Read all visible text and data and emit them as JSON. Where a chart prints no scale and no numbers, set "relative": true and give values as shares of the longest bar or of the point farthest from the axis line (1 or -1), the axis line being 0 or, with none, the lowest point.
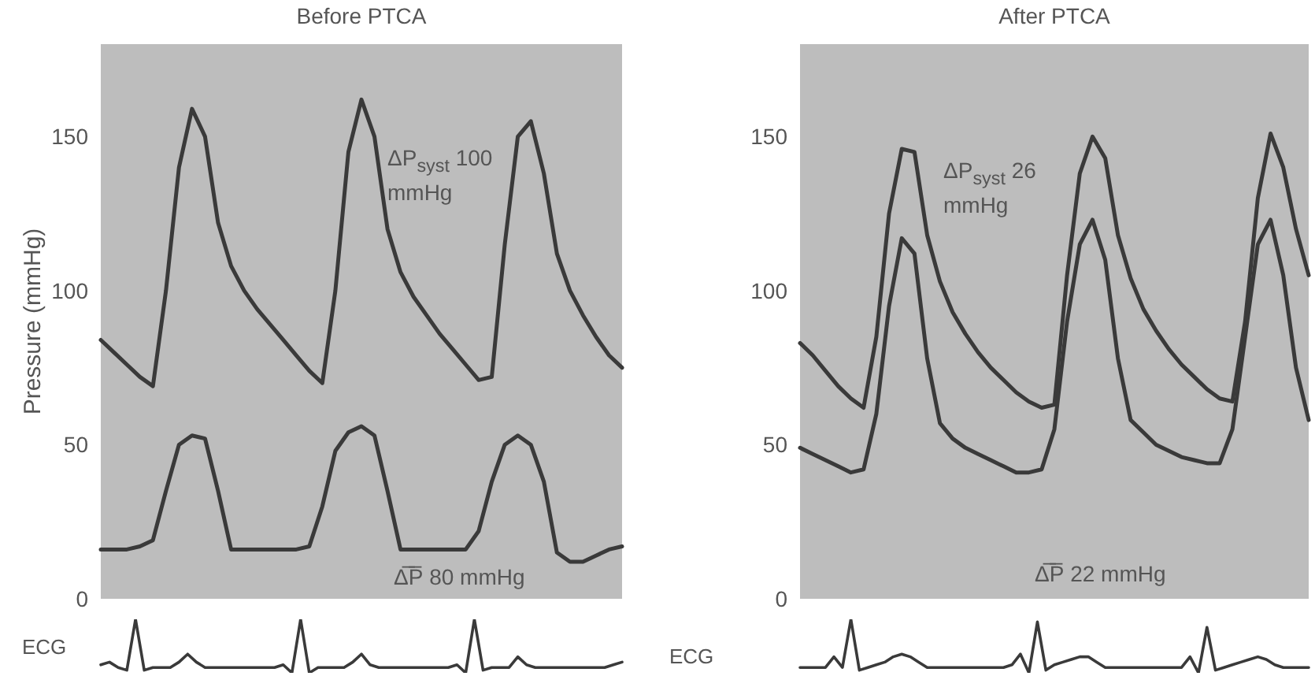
{
  "chart_data": [
    {
      "type": "line",
      "title": "Before PTCA",
      "ylabel": "Pressure (mmHg)",
      "ylim": [
        0,
        180
      ],
      "yticks": [
        0,
        50,
        100,
        150
      ],
      "marker": "none",
      "grid": false,
      "categories": [
        null,
        null,
        null,
        null,
        null,
        null,
        null,
        null,
        null,
        null,
        null,
        null,
        null,
        null,
        null,
        null,
        null,
        null,
        null,
        null,
        null,
        null,
        null,
        null,
        null,
        null,
        null,
        null,
        null,
        null,
        null,
        null,
        null,
        null,
        null,
        null,
        null,
        null,
        null,
        null,
        null
      ],
      "series": [
        {
          "color": "#3a3a3a",
          "values": [
            84,
            80,
            76,
            72,
            69,
            100,
            140,
            159,
            150,
            122,
            108,
            100,
            94,
            89,
            84,
            79,
            74,
            70,
            100,
            145,
            162,
            150,
            120,
            106,
            98,
            92,
            86,
            81,
            76,
            71,
            72,
            115,
            150,
            155,
            138,
            112,
            100,
            92,
            85,
            79,
            75
          ]
        },
        {
          "color": "#3a3a3a",
          "values": [
            16,
            16,
            16,
            17,
            19,
            35,
            50,
            53,
            52,
            35,
            16,
            16,
            16,
            16,
            16,
            16,
            17,
            30,
            48,
            54,
            56,
            53,
            35,
            16,
            16,
            16,
            16,
            16,
            16,
            22,
            38,
            50,
            53,
            50,
            38,
            15,
            12,
            12,
            14,
            16,
            17
          ]
        }
      ],
      "annotations": [
        "ΔP$_{syst}$ 100 mmHg",
        "Δ̅P̅ 80 mmHg"
      ]
    },
    {
      "type": "line",
      "ylabel": "ECG",
      "relative": true,
      "marker": "none",
      "grid": false,
      "categories": [
        null,
        null,
        null,
        null,
        null,
        null,
        null,
        null,
        null,
        null,
        null,
        null,
        null,
        null,
        null,
        null,
        null,
        null,
        null,
        null,
        null,
        null,
        null,
        null,
        null,
        null,
        null,
        null,
        null,
        null,
        null,
        null,
        null,
        null,
        null,
        null,
        null,
        null,
        null,
        null,
        null,
        null,
        null,
        null,
        null,
        null,
        null,
        null,
        null,
        null,
        null,
        null,
        null,
        null,
        null,
        null,
        null,
        null,
        null,
        null,
        null
      ],
      "series": [
        {
          "color": "#3a3a3a",
          "values": [
            0.15,
            0.2,
            0.1,
            0.05,
            1,
            0.05,
            0.1,
            0.1,
            0.1,
            0.2,
            0.35,
            0.2,
            0.1,
            0.1,
            0.1,
            0.1,
            0.1,
            0.1,
            0.1,
            0.1,
            0.1,
            0.15,
            0,
            1,
            0,
            0.1,
            0.1,
            0.1,
            0.1,
            0.2,
            0.35,
            0.15,
            0.1,
            0.1,
            0.1,
            0.1,
            0.1,
            0.1,
            0.1,
            0.1,
            0.1,
            0.15,
            0,
            1,
            0.05,
            0.1,
            0.1,
            0.1,
            0.3,
            0.15,
            0.1,
            0.1,
            0.1,
            0.1,
            0.1,
            0.1,
            0.1,
            0.1,
            0.1,
            0.15,
            0.2
          ]
        }
      ]
    },
    {
      "type": "line",
      "title": "After PTCA",
      "ylim": [
        0,
        180
      ],
      "yticks": [
        0,
        50,
        100,
        150
      ],
      "marker": "none",
      "grid": false,
      "categories": [
        null,
        null,
        null,
        null,
        null,
        null,
        null,
        null,
        null,
        null,
        null,
        null,
        null,
        null,
        null,
        null,
        null,
        null,
        null,
        null,
        null,
        null,
        null,
        null,
        null,
        null,
        null,
        null,
        null,
        null,
        null,
        null,
        null,
        null,
        null,
        null,
        null,
        null,
        null,
        null,
        null
      ],
      "series": [
        {
          "color": "#3a3a3a",
          "values": [
            83,
            79,
            74,
            69,
            65,
            62,
            85,
            125,
            146,
            145,
            118,
            103,
            93,
            86,
            80,
            75,
            71,
            67,
            64,
            62,
            63,
            105,
            138,
            150,
            143,
            118,
            104,
            94,
            87,
            81,
            76,
            72,
            68,
            65,
            64,
            90,
            130,
            151,
            140,
            120,
            105
          ]
        },
        {
          "color": "#3a3a3a",
          "values": [
            49,
            47,
            45,
            43,
            41,
            42,
            60,
            95,
            117,
            112,
            78,
            57,
            52,
            49,
            47,
            45,
            43,
            41,
            41,
            42,
            55,
            90,
            115,
            123,
            110,
            78,
            58,
            54,
            50,
            48,
            46,
            45,
            44,
            44,
            55,
            85,
            115,
            123,
            105,
            75,
            58
          ]
        }
      ],
      "annotations": [
        "ΔP$_{syst}$ 26 mmHg",
        "Δ̅P̅ 22 mmHg"
      ]
    },
    {
      "type": "line",
      "ylabel": "ECG",
      "relative": true,
      "marker": "none",
      "grid": false,
      "categories": [
        null,
        null,
        null,
        null,
        null,
        null,
        null,
        null,
        null,
        null,
        null,
        null,
        null,
        null,
        null,
        null,
        null,
        null,
        null,
        null,
        null,
        null,
        null,
        null,
        null,
        null,
        null,
        null,
        null,
        null,
        null,
        null,
        null,
        null,
        null,
        null,
        null,
        null,
        null,
        null,
        null,
        null,
        null,
        null,
        null,
        null,
        null,
        null,
        null,
        null,
        null,
        null,
        null,
        null,
        null,
        null,
        null,
        null,
        null,
        null,
        null
      ],
      "series": [
        {
          "color": "#3a3a3a",
          "values": [
            0.1,
            0.1,
            0.1,
            0.1,
            0.3,
            0.1,
            1,
            0.05,
            0.1,
            0.15,
            0.2,
            0.3,
            0.35,
            0.3,
            0.2,
            0.1,
            0.1,
            0.1,
            0.1,
            0.1,
            0.1,
            0.1,
            0.1,
            0.1,
            0.1,
            0.15,
            0.35,
            0,
            0.95,
            0.05,
            0.15,
            0.2,
            0.25,
            0.3,
            0.3,
            0.2,
            0.1,
            0.1,
            0.1,
            0.1,
            0.1,
            0.1,
            0.1,
            0.1,
            0.1,
            0.1,
            0.3,
            0,
            0.85,
            0.05,
            0.1,
            0.15,
            0.2,
            0.25,
            0.3,
            0.25,
            0.15,
            0.1,
            0.1,
            0.1,
            0.1
          ]
        }
      ]
    }
  ]
}
